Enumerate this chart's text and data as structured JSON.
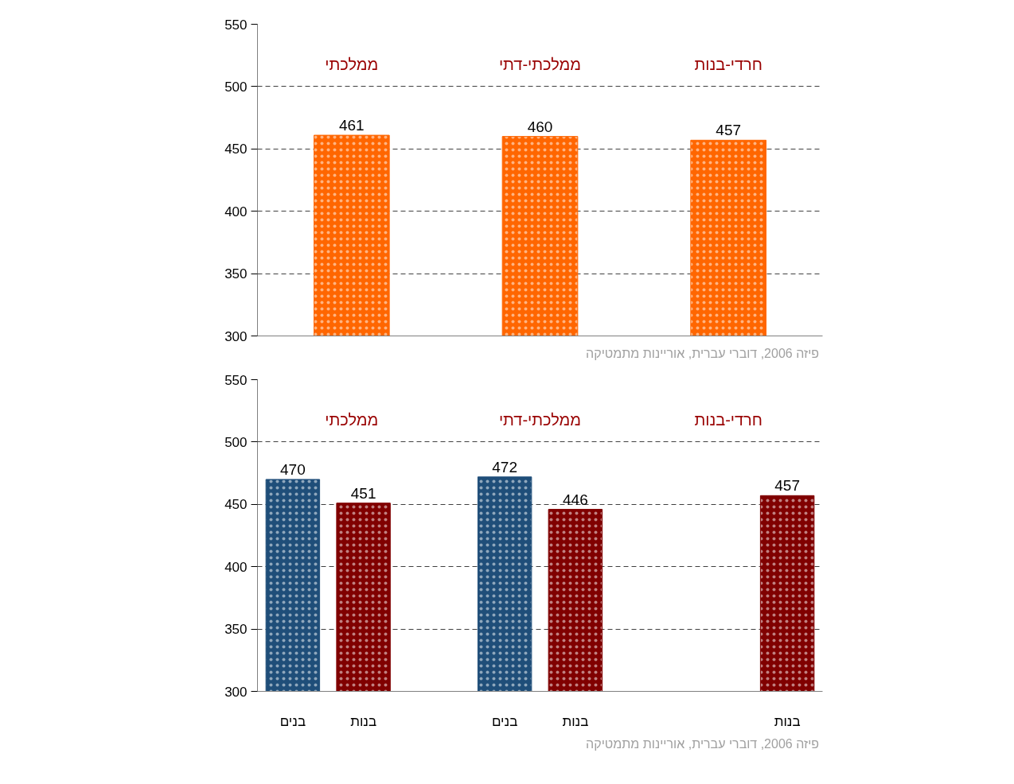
{
  "chart_data": [
    {
      "type": "bar",
      "categories": [
        null,
        null,
        null
      ],
      "values": [
        461,
        460,
        457
      ],
      "colors": [
        "#ff6600",
        "#ff6600",
        "#ff6600"
      ],
      "ylim": [
        300,
        550
      ],
      "yticks": [
        300,
        350,
        400,
        450,
        500,
        550
      ],
      "grid": "y",
      "data_labels": true,
      "tick_labels": "y",
      "annotations": [
        "ממלכתי",
        "ממלכתי-דתי",
        "חרדי-בנות",
        "פיזה 2006, דוברי עברית, אוריינות  מתמטיקה"
      ]
    },
    {
      "type": "bar",
      "categories": [
        "בנים",
        "בנות",
        null,
        "בנים",
        "בנות",
        null,
        null,
        "בנות"
      ],
      "values": [
        470,
        451,
        null,
        472,
        446,
        null,
        null,
        457
      ],
      "colors": [
        "#1f4e79",
        "#800000",
        null,
        "#1f4e79",
        "#800000",
        null,
        null,
        "#800000"
      ],
      "ylim": [
        300,
        550
      ],
      "yticks": [
        300,
        350,
        400,
        450,
        500,
        550
      ],
      "grid": "y",
      "data_labels": true,
      "annotations": [
        "ממלכתי",
        "ממלכתי-דתי",
        "חרדי-בנות",
        "פיזה 2006, דוברי עברית, אוריינות  מתמטיקה"
      ]
    }
  ]
}
